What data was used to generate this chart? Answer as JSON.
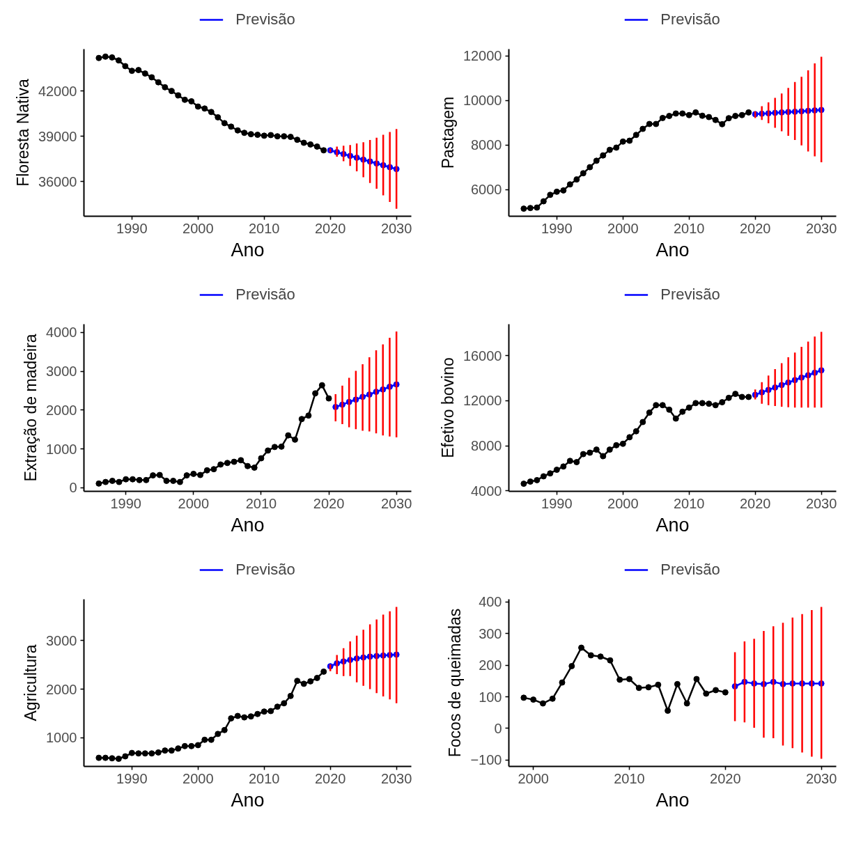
{
  "chart_data": [
    {
      "type": "line",
      "xlabel": "Ano",
      "ylabel": "Floresta Nativa",
      "xlim": [
        1982.75,
        2032.25
      ],
      "ylim": [
        33700,
        44780
      ],
      "xticks": [
        1990,
        2000,
        2010,
        2020,
        2030
      ],
      "yticks": [
        36000,
        39000,
        42000
      ],
      "legend": "top",
      "marker": "circle",
      "series": [
        {
          "color": "#000000",
          "x": [
            1985,
            1986,
            1987,
            1988,
            1989,
            1990,
            1991,
            1992,
            1993,
            1994,
            1995,
            1996,
            1997,
            1998,
            1999,
            2000,
            2001,
            2002,
            2003,
            2004,
            2005,
            2006,
            2007,
            2008,
            2009,
            2010,
            2011,
            2012,
            2013,
            2014,
            2015,
            2016,
            2017,
            2018,
            2019
          ],
          "values": [
            44190,
            44280,
            44230,
            44030,
            43650,
            43340,
            43390,
            43160,
            42910,
            42580,
            42250,
            42000,
            41710,
            41420,
            41320,
            40970,
            40840,
            40610,
            40260,
            39870,
            39640,
            39390,
            39230,
            39140,
            39100,
            39040,
            39080,
            39000,
            39000,
            38960,
            38770,
            38570,
            38460,
            38320,
            38070
          ]
        },
        {
          "name": "Previsão",
          "color": "#0000ff",
          "x": [
            2020,
            2021,
            2022,
            2023,
            2024,
            2025,
            2026,
            2027,
            2028,
            2029,
            2030
          ],
          "values": [
            38070,
            37950,
            37820,
            37700,
            37580,
            37450,
            37330,
            37200,
            37080,
            36950,
            36830
          ],
          "errors": [
            [
              37940,
              38190
            ],
            [
              37650,
              38320
            ],
            [
              37350,
              38380
            ],
            [
              37030,
              38420
            ],
            [
              36680,
              38520
            ],
            [
              36290,
              38610
            ],
            [
              35900,
              38750
            ],
            [
              35520,
              38900
            ],
            [
              35090,
              39100
            ],
            [
              34650,
              39290
            ],
            [
              34200,
              39480
            ]
          ]
        }
      ]
    },
    {
      "type": "line",
      "xlabel": "Ano",
      "ylabel": "Pastagem",
      "xlim": [
        1982.75,
        2032.25
      ],
      "ylim": [
        4810,
        12310
      ],
      "xticks": [
        1990,
        2000,
        2010,
        2020,
        2030
      ],
      "yticks": [
        6000,
        8000,
        10000,
        12000
      ],
      "legend": "top",
      "marker": "circle",
      "series": [
        {
          "color": "#000000",
          "x": [
            1985,
            1986,
            1987,
            1988,
            1989,
            1990,
            1991,
            1992,
            1993,
            1994,
            1995,
            1996,
            1997,
            1998,
            1999,
            2000,
            2001,
            2002,
            2003,
            2004,
            2005,
            2006,
            2007,
            2008,
            2009,
            2010,
            2011,
            2012,
            2013,
            2014,
            2015,
            2016,
            2017,
            2018,
            2019
          ],
          "values": [
            5150,
            5180,
            5200,
            5480,
            5770,
            5910,
            5970,
            6240,
            6460,
            6740,
            7010,
            7300,
            7540,
            7790,
            7890,
            8160,
            8200,
            8460,
            8730,
            8950,
            8950,
            9220,
            9310,
            9420,
            9420,
            9350,
            9470,
            9320,
            9260,
            9130,
            8940,
            9210,
            9310,
            9350,
            9470
          ]
        },
        {
          "name": "Previsão",
          "color": "#0000ff",
          "x": [
            2020,
            2021,
            2022,
            2023,
            2024,
            2025,
            2026,
            2027,
            2028,
            2029,
            2030
          ],
          "values": [
            9390,
            9410,
            9430,
            9450,
            9470,
            9490,
            9500,
            9520,
            9540,
            9560,
            9580
          ],
          "errors": [
            [
              9220,
              9520
            ],
            [
              9130,
              9750
            ],
            [
              8980,
              9920
            ],
            [
              8780,
              10120
            ],
            [
              8620,
              10320
            ],
            [
              8420,
              10570
            ],
            [
              8230,
              10830
            ],
            [
              7990,
              11070
            ],
            [
              7720,
              11360
            ],
            [
              7500,
              11670
            ],
            [
              7230,
              11970
            ]
          ]
        }
      ]
    },
    {
      "type": "line",
      "xlabel": "Ano",
      "ylabel": "Extração de madeira",
      "xlim": [
        1983.8,
        2032.2
      ],
      "ylim": [
        -90,
        4210
      ],
      "xticks": [
        1990,
        2000,
        2010,
        2020,
        2030
      ],
      "yticks": [
        0,
        1000,
        2000,
        3000,
        4000
      ],
      "legend": "top",
      "marker": "circle",
      "series": [
        {
          "color": "#000000",
          "x": [
            1986,
            1987,
            1988,
            1989,
            1990,
            1991,
            1992,
            1993,
            1994,
            1995,
            1996,
            1997,
            1998,
            1999,
            2000,
            2001,
            2002,
            2003,
            2004,
            2005,
            2006,
            2007,
            2008,
            2009,
            2010,
            2011,
            2012,
            2013,
            2014,
            2015,
            2016,
            2017,
            2018,
            2019,
            2020
          ],
          "values": [
            110,
            150,
            180,
            150,
            220,
            220,
            200,
            200,
            320,
            330,
            180,
            180,
            150,
            320,
            360,
            330,
            450,
            480,
            600,
            640,
            670,
            710,
            560,
            520,
            760,
            960,
            1050,
            1060,
            1350,
            1240,
            1770,
            1860,
            2430,
            2640,
            2300
          ]
        },
        {
          "name": "Previsão",
          "color": "#0000ff",
          "x": [
            2021,
            2022,
            2023,
            2024,
            2025,
            2026,
            2027,
            2028,
            2029,
            2030
          ],
          "values": [
            2080,
            2140,
            2210,
            2270,
            2340,
            2400,
            2470,
            2530,
            2600,
            2660
          ],
          "errors": [
            [
              1710,
              2410
            ],
            [
              1640,
              2630
            ],
            [
              1560,
              2830
            ],
            [
              1510,
              3010
            ],
            [
              1470,
              3180
            ],
            [
              1450,
              3360
            ],
            [
              1400,
              3540
            ],
            [
              1350,
              3690
            ],
            [
              1320,
              3860
            ],
            [
              1300,
              4020
            ]
          ]
        }
      ]
    },
    {
      "type": "line",
      "xlabel": "Ano",
      "ylabel": "Efetivo bovino",
      "xlim": [
        1982.75,
        2032.25
      ],
      "ylim": [
        3955,
        18805
      ],
      "xticks": [
        1990,
        2000,
        2010,
        2020,
        2030
      ],
      "yticks": [
        4000,
        8000,
        12000,
        16000
      ],
      "legend": "top",
      "marker": "circle",
      "series": [
        {
          "color": "#000000",
          "x": [
            1985,
            1986,
            1987,
            1988,
            1989,
            1990,
            1991,
            1992,
            1993,
            1994,
            1995,
            1996,
            1997,
            1998,
            1999,
            2000,
            2001,
            2002,
            2003,
            2004,
            2005,
            2006,
            2007,
            2008,
            2009,
            2010,
            2011,
            2012,
            2013,
            2014,
            2015,
            2016,
            2017,
            2018,
            2019
          ],
          "values": [
            4630,
            4820,
            4950,
            5290,
            5550,
            5870,
            6160,
            6660,
            6550,
            7260,
            7390,
            7660,
            7080,
            7660,
            8050,
            8180,
            8760,
            9290,
            10110,
            10950,
            11610,
            11610,
            11210,
            10420,
            11030,
            11390,
            11790,
            11790,
            11740,
            11610,
            11870,
            12260,
            12610,
            12340,
            12340
          ]
        },
        {
          "name": "Previsão",
          "color": "#0000ff",
          "x": [
            2020,
            2021,
            2022,
            2023,
            2024,
            2025,
            2026,
            2027,
            2028,
            2029,
            2030
          ],
          "values": [
            12530,
            12750,
            12970,
            13180,
            13400,
            13620,
            13840,
            14060,
            14270,
            14490,
            14710
          ],
          "errors": [
            [
              12130,
              13000
            ],
            [
              11740,
              13660
            ],
            [
              11610,
              14240
            ],
            [
              11530,
              14820
            ],
            [
              11470,
              15340
            ],
            [
              11420,
              15870
            ],
            [
              11390,
              16290
            ],
            [
              11390,
              16790
            ],
            [
              11390,
              17260
            ],
            [
              11390,
              17710
            ],
            [
              11390,
              18130
            ]
          ]
        }
      ]
    },
    {
      "type": "line",
      "xlabel": "Ano",
      "ylabel": "Agricultura",
      "xlim": [
        1982.75,
        2032.25
      ],
      "ylim": [
        413,
        3846
      ],
      "xticks": [
        1990,
        2000,
        2010,
        2020,
        2030
      ],
      "yticks": [
        1000,
        2000,
        3000
      ],
      "legend": "top",
      "marker": "circle",
      "series": [
        {
          "color": "#000000",
          "x": [
            1985,
            1986,
            1987,
            1988,
            1989,
            1990,
            1991,
            1992,
            1993,
            1994,
            1995,
            1996,
            1997,
            1998,
            1999,
            2000,
            2001,
            2002,
            2003,
            2004,
            2005,
            2006,
            2007,
            2008,
            2009,
            2010,
            2011,
            2012,
            2013,
            2014,
            2015,
            2016,
            2017,
            2018,
            2019
          ],
          "values": [
            590,
            590,
            580,
            570,
            620,
            690,
            680,
            680,
            680,
            700,
            740,
            740,
            780,
            830,
            830,
            850,
            960,
            960,
            1080,
            1160,
            1400,
            1450,
            1420,
            1440,
            1490,
            1540,
            1550,
            1640,
            1710,
            1860,
            2170,
            2110,
            2160,
            2230,
            2360
          ]
        },
        {
          "name": "Previsão",
          "color": "#0000ff",
          "x": [
            2020,
            2021,
            2022,
            2023,
            2024,
            2025,
            2026,
            2027,
            2028,
            2029,
            2030
          ],
          "values": [
            2470,
            2530,
            2570,
            2600,
            2630,
            2650,
            2670,
            2680,
            2690,
            2700,
            2710
          ],
          "errors": [
            [
              2370,
              2510
            ],
            [
              2310,
              2700
            ],
            [
              2270,
              2840
            ],
            [
              2270,
              2980
            ],
            [
              2140,
              3100
            ],
            [
              2070,
              3220
            ],
            [
              2000,
              3330
            ],
            [
              1920,
              3430
            ],
            [
              1850,
              3530
            ],
            [
              1790,
              3600
            ],
            [
              1710,
              3690
            ]
          ]
        }
      ]
    },
    {
      "type": "line",
      "xlabel": "Ano",
      "ylabel": "Focos de queimadas",
      "xlim": [
        1997.45,
        2031.55
      ],
      "ylim": [
        -120,
        408
      ],
      "xticks": [
        2000,
        2010,
        2020,
        2030
      ],
      "yticks": [
        {
          "value": -100,
          "label": "−100"
        },
        0,
        100,
        200,
        300,
        400
      ],
      "legend": "top",
      "marker": "circle",
      "series": [
        {
          "color": "#000000",
          "x": [
            1999,
            2000,
            2001,
            2002,
            2003,
            2004,
            2005,
            2006,
            2007,
            2008,
            2009,
            2010,
            2011,
            2012,
            2013,
            2014,
            2015,
            2016,
            2017,
            2018,
            2019,
            2020
          ],
          "values": [
            97,
            91,
            79,
            94,
            145,
            197,
            255,
            231,
            227,
            215,
            154,
            156,
            128,
            130,
            138,
            56,
            140,
            79,
            156,
            110,
            121,
            114
          ]
        },
        {
          "name": "Previsão",
          "color": "#0000ff",
          "x": [
            2021,
            2022,
            2023,
            2024,
            2025,
            2026,
            2027,
            2028,
            2029,
            2030
          ],
          "values": [
            133,
            147,
            142,
            140,
            147,
            140,
            142,
            142,
            142,
            142
          ],
          "errors": [
            [
              23,
              241
            ],
            [
              19,
              275
            ],
            [
              2,
              283
            ],
            [
              -29,
              308
            ],
            [
              -31,
              323
            ],
            [
              -54,
              334
            ],
            [
              -62,
              350
            ],
            [
              -76,
              361
            ],
            [
              -89,
              374
            ],
            [
              -96,
              384
            ]
          ]
        }
      ]
    }
  ]
}
